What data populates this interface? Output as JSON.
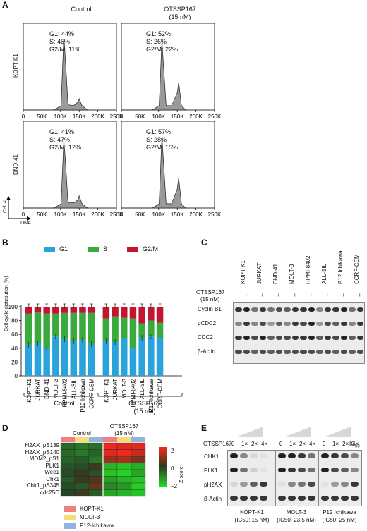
{
  "panel_labels": {
    "a": "A",
    "b": "B",
    "c": "C",
    "d": "D",
    "e": "E"
  },
  "a": {
    "col_control": "Control",
    "col_treat_line1": "OTSSP167",
    "col_treat_line2": "(15 nM)",
    "row1": "KOPT-K1",
    "row2": "DND-41",
    "x_ticks": [
      "0",
      "50K",
      "100K",
      "150K",
      "200K",
      "250K"
    ],
    "y_axis": "Cell #",
    "x_axis": "DNA",
    "stats": [
      {
        "g1": "G1: 44%",
        "s": "S: 45%",
        "g2m": "G2/M: 11%"
      },
      {
        "g1": "G1: 52%",
        "s": "S: 26%",
        "g2m": "G2/M: 22%"
      },
      {
        "g1": "G1: 41%",
        "s": "S: 47%",
        "g2m": "G2/M: 12%"
      },
      {
        "g1": "G1: 57%",
        "s": "S: 28%",
        "g2m": "G2/M: 15%"
      }
    ]
  },
  "b": {
    "legend": [
      "G1",
      "S",
      "G2/M"
    ],
    "y_label": "Cell cycle distribution (%)",
    "y_ticks": [
      "0",
      "20",
      "40",
      "60",
      "80",
      "100"
    ],
    "group_control": "Control",
    "group_treat1": "OTSSP167",
    "group_treat2": "(15 nM)"
  },
  "c": {
    "lines": [
      "KOPT-K1",
      "JURKAT",
      "DND-41",
      "MOLT-3",
      "RPMI-8402",
      "ALL-SIL",
      "P12 Ichikawa",
      "CCRF-CEM"
    ],
    "drug_line1": "OTSSP167",
    "drug_line2": "(15 nM)",
    "minus": "−",
    "plus": "+",
    "proteins": [
      "Cyclin B1",
      "pCDC2",
      "CDC2",
      "β-Actin"
    ]
  },
  "d": {
    "col_control": "Control",
    "col_treat_line1": "OTSSP167",
    "col_treat_line2": "(15 nM)",
    "rows": [
      "H2AX_pS139",
      "H2AX_pS140",
      "MDM2_pS1",
      "PLK1",
      "Wee1",
      "Chk1",
      "Chk1_pS345",
      "cdc25C"
    ],
    "scale_label": "Z-score",
    "scale_ticks": [
      "2",
      "0",
      "−2"
    ],
    "legend": [
      "KOPT-K1",
      "MOLT-3",
      "P12-Ichikawa"
    ]
  },
  "e": {
    "drug": "OTSSP167",
    "doses": [
      "0",
      "1×",
      "2×",
      "4×"
    ],
    "ic": "IC50",
    "proteins": [
      "CHK1",
      "PLK1",
      "pH2AX",
      "β-Actin"
    ],
    "lines": [
      {
        "name": "KOPT-K1",
        "ic": "(IC50: 15 nM)"
      },
      {
        "name": "MOLT-3",
        "ic": "(IC50: 23.5 nM)"
      },
      {
        "name": "P12 Ichikawa",
        "ic": "(IC50: 25 nM)"
      }
    ]
  },
  "chart_data": [
    {
      "type": "bar",
      "title": "Cell cycle distribution (%)",
      "categories": [
        "KOPT-K1",
        "JURKAT",
        "DND-41",
        "MOLT-3",
        "RPMI-8402",
        "ALL-SIL",
        "P12 Ichikawa",
        "CCRF-CEM",
        "KOPT-K1",
        "JURKAT",
        "MOLT-3",
        "RPMI-8402",
        "ALL-SIL",
        "P12 Ichikawa",
        "CCRF-CEM"
      ],
      "series": [
        {
          "name": "G1",
          "values": [
            45,
            47,
            40,
            57,
            53,
            50,
            52,
            46,
            50,
            49,
            54,
            40,
            55,
            57,
            55
          ]
        },
        {
          "name": "S",
          "values": [
            45,
            45,
            50,
            33,
            38,
            41,
            39,
            45,
            33,
            37,
            30,
            43,
            21,
            23,
            22
          ]
        },
        {
          "name": "G2/M",
          "values": [
            10,
            8,
            10,
            10,
            9,
            9,
            9,
            9,
            17,
            14,
            16,
            17,
            24,
            20,
            23
          ]
        }
      ],
      "ylim": [
        0,
        100
      ],
      "colors": {
        "G1": "#2aa3dc",
        "S": "#3aaa3f",
        "G2/M": "#c4142f"
      }
    }
  ]
}
